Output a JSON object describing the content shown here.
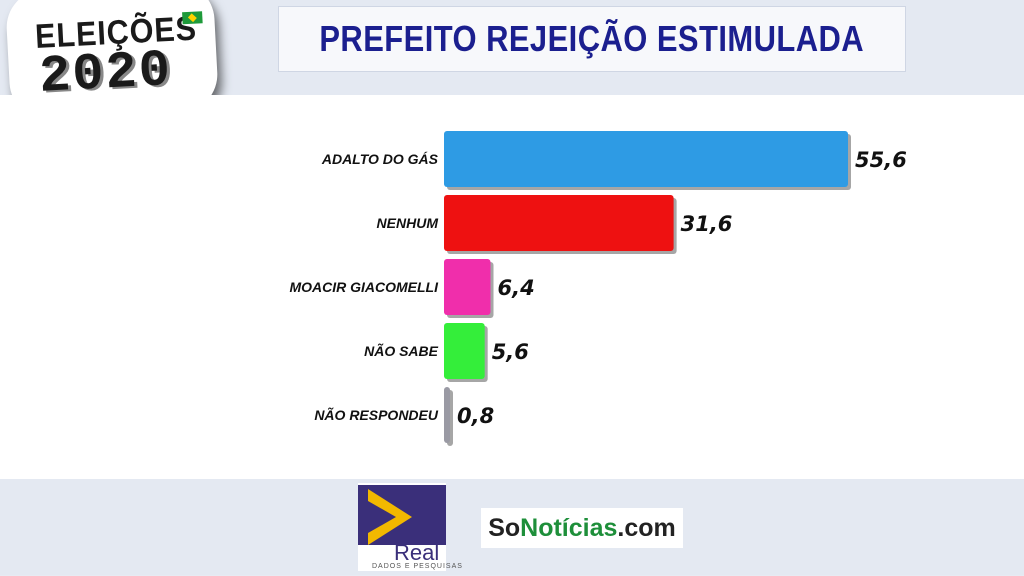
{
  "header": {
    "title": "PREFEITO REJEIÇÃO ESTIMULADA",
    "badge_word": "ELEIÇÕES",
    "badge_year": "2020"
  },
  "chart_data": {
    "type": "bar",
    "orientation": "horizontal",
    "title": "PREFEITO REJEIÇÃO ESTIMULADA",
    "categories": [
      "ADALTO DO GÁS",
      "NENHUM",
      "MOACIR GIACOMELLI",
      "NÃO SABE",
      "NÃO RESPONDEU"
    ],
    "values": [
      55.6,
      31.6,
      6.4,
      5.6,
      0.8
    ],
    "value_labels": [
      "55,6",
      "31,6",
      "6,4",
      "5,6",
      "0,8"
    ],
    "colors": [
      "#2e9be4",
      "#ee1111",
      "#f02eab",
      "#34ee3a",
      "#9a9aa4"
    ],
    "xlim": [
      0,
      55.6
    ],
    "grid": false,
    "legend": "none"
  },
  "footer": {
    "real_logo_text": "Real",
    "real_logo_subtext": "DADOS E PESQUISAS",
    "sonoticias_part1": "So",
    "sonoticias_part2": "Notícias",
    "sonoticias_part3": ".com"
  }
}
